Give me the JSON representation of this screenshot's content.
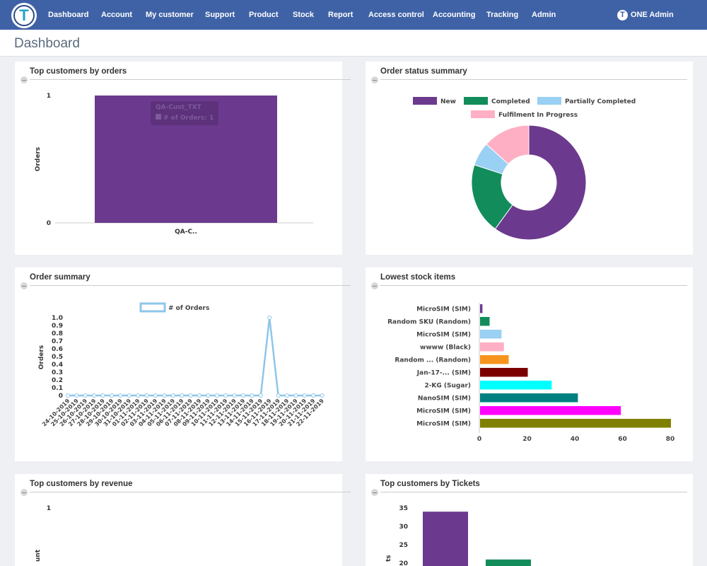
{
  "nav": {
    "logo_letter": "T",
    "items": [
      "Dashboard",
      "Account",
      "My customer",
      "Support",
      "Product",
      "Stock",
      "Report",
      "Access control",
      "Accounting",
      "Tracking",
      "Admin"
    ],
    "user_icon_letter": "T",
    "user_label": "ONE Admin"
  },
  "page": {
    "title": "Dashboard"
  },
  "cards": {
    "top_customers_orders": {
      "title": "Top customers by orders",
      "chart_data": {
        "type": "bar",
        "categories": [
          "QA-C.."
        ],
        "values": [
          1
        ],
        "ylabel": "Orders",
        "ylim": [
          0,
          1
        ],
        "yticks": [
          "0",
          "1"
        ],
        "color": "#6b3a8e",
        "tooltip": {
          "title": "QA-Cust_TXT",
          "line": "# of Orders: 1"
        }
      }
    },
    "order_status": {
      "title": "Order status summary",
      "chart_data": {
        "type": "pie",
        "labels": [
          "New",
          "Completed",
          "Partially Completed",
          "Fulfilment In Progress"
        ],
        "values": [
          9,
          3,
          1,
          2
        ],
        "colors": [
          "#6b3a8e",
          "#128c5b",
          "#99d0f3",
          "#ffafc4"
        ],
        "legend_position": "top"
      }
    },
    "order_summary": {
      "title": "Order summary",
      "chart_data": {
        "type": "line",
        "x": [
          "24-10-2019",
          "25-10-2019",
          "26-10-2019",
          "27-10-2019",
          "28-10-2019",
          "29-10-2019",
          "30-10-2019",
          "31-10-2019",
          "01-11-2019",
          "02-11-2019",
          "03-11-2019",
          "04-11-2019",
          "05-11-2019",
          "06-11-2019",
          "07-11-2019",
          "08-11-2019",
          "09-11-2019",
          "10-11-2019",
          "11-11-2019",
          "12-11-2019",
          "13-11-2019",
          "14-11-2019",
          "15-11-2019",
          "16-11-2019",
          "17-11-2019",
          "18-11-2019",
          "19-11-2019",
          "20-11-2019",
          "21-11-2019",
          "22-11-2019"
        ],
        "series": [
          {
            "name": "# of Orders",
            "values": [
              0,
              0,
              0,
              0,
              0,
              0,
              0,
              0,
              0,
              0,
              0,
              0,
              0,
              0,
              0,
              0,
              0,
              0,
              0,
              0,
              0,
              0,
              0,
              1,
              0,
              0,
              0,
              0,
              0,
              0
            ]
          }
        ],
        "ylabel": "Orders",
        "ylim": [
          0,
          1
        ],
        "yticks": [
          "0",
          "0.1",
          "0.2",
          "0.3",
          "0.4",
          "0.5",
          "0.6",
          "0.7",
          "0.8",
          "0.9",
          "1.0"
        ],
        "color": "#8fc6ea",
        "legend_position": "top"
      }
    },
    "lowest_stock": {
      "title": "Lowest stock items",
      "chart_data": {
        "type": "bar",
        "orientation": "horizontal",
        "categories": [
          "MicroSIM (SIM)",
          "Random SKU (Random)",
          "MicroSIM (SIM)",
          "wwww (Black)",
          "Random ... (Random)",
          "Jan-17-... (SIM)",
          "2-KG (Sugar)",
          "NanoSIM (SIM)",
          "MicroSIM (SIM)",
          "MicroSIM (SIM)"
        ],
        "values": [
          1,
          4,
          9,
          10,
          12,
          20,
          30,
          41,
          59,
          80
        ],
        "colors": [
          "#6b3a8e",
          "#128c5b",
          "#99d0f3",
          "#ffafc4",
          "#f7941d",
          "#7b0000",
          "#00ffff",
          "#008080",
          "#ff00ff",
          "#808000"
        ],
        "xlim": [
          0,
          80
        ],
        "xticks": [
          "0",
          "20",
          "40",
          "60",
          "80"
        ]
      }
    },
    "top_customers_revenue": {
      "title": "Top customers by revenue",
      "chart_data": {
        "type": "bar",
        "yticks": [
          "1"
        ],
        "ylabel_visible": "unt"
      }
    },
    "top_customers_tickets": {
      "title": "Top customers by Tickets",
      "chart_data": {
        "type": "bar",
        "values": [
          34,
          21
        ],
        "colors": [
          "#6b3a8e",
          "#128c5b"
        ],
        "yticks": [
          "20",
          "25",
          "30",
          "35"
        ],
        "ylabel_visible": "ts"
      }
    }
  }
}
